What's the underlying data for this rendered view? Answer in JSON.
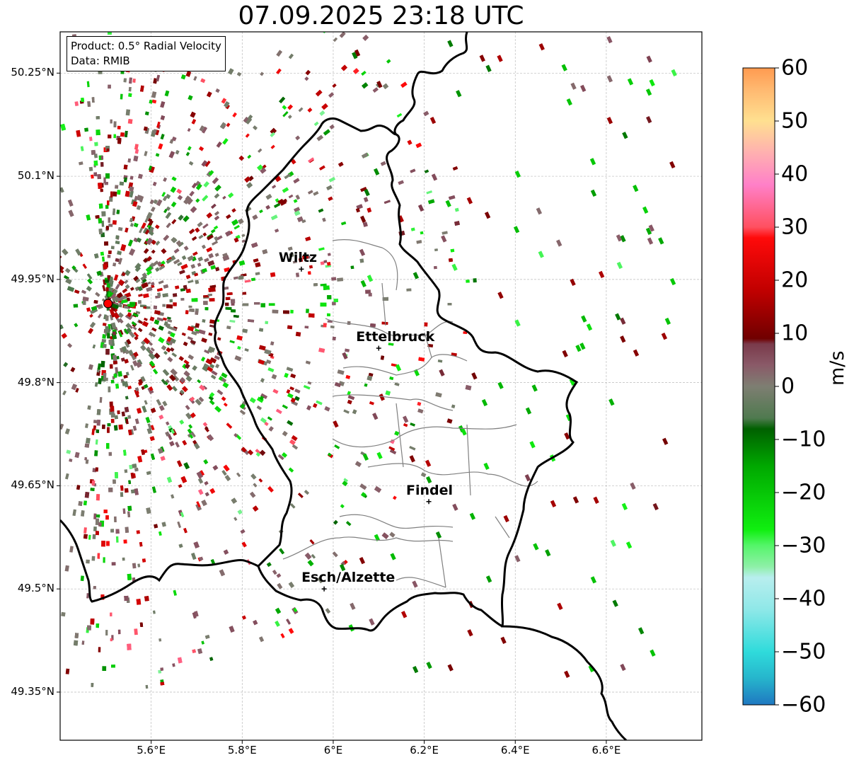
{
  "title": "07.09.2025 23:18 UTC",
  "info_box": {
    "product": "Product: 0.5° Radial Velocity",
    "source": "Data: RMIB"
  },
  "lat_ticks": [
    "50.25°N",
    "50.1°N",
    "49.95°N",
    "49.8°N",
    "49.65°N",
    "49.5°N",
    "49.35°N"
  ],
  "lon_ticks": [
    "5.6°E",
    "5.8°E",
    "6°E",
    "6.2°E",
    "6.4°E",
    "6.6°E"
  ],
  "cities": [
    {
      "name": "Wiltz",
      "lon": 5.93,
      "lat": 49.965
    },
    {
      "name": "Ettelbruck",
      "lon": 6.1,
      "lat": 49.85
    },
    {
      "name": "Findel",
      "lon": 6.21,
      "lat": 49.627
    },
    {
      "name": "Esch/Alzette",
      "lon": 5.98,
      "lat": 49.5
    }
  ],
  "radar_site": {
    "lon": 5.505,
    "lat": 49.915,
    "color": "#ff0000"
  },
  "colorbar": {
    "unit": "m/s",
    "min": -60,
    "max": 60,
    "ticks": [
      "60",
      "50",
      "40",
      "30",
      "20",
      "10",
      "0",
      "−10",
      "−20",
      "−30",
      "−40",
      "−50",
      "−60"
    ],
    "stops": [
      {
        "value": -60,
        "color": "#1f78c1"
      },
      {
        "value": -55,
        "color": "#26b5cc"
      },
      {
        "value": -50,
        "color": "#2fdbdb"
      },
      {
        "value": -42,
        "color": "#8fe8e8"
      },
      {
        "value": -36,
        "color": "#b8eeee"
      },
      {
        "value": -34,
        "color": "#8ff0a8"
      },
      {
        "value": -30,
        "color": "#55f56a"
      },
      {
        "value": -27,
        "color": "#10ef10"
      },
      {
        "value": -15,
        "color": "#00a800"
      },
      {
        "value": -8,
        "color": "#006000"
      },
      {
        "value": -6,
        "color": "#4f7a4f"
      },
      {
        "value": 0,
        "color": "#7e7e72"
      },
      {
        "value": 4,
        "color": "#8a5a68"
      },
      {
        "value": 8,
        "color": "#7a3a4a"
      },
      {
        "value": 9,
        "color": "#700000"
      },
      {
        "value": 18,
        "color": "#c00000"
      },
      {
        "value": 28,
        "color": "#ff0a0a"
      },
      {
        "value": 30,
        "color": "#ff5060"
      },
      {
        "value": 38,
        "color": "#ff80c8"
      },
      {
        "value": 44,
        "color": "#ffb0b0"
      },
      {
        "value": 50,
        "color": "#ffe090"
      },
      {
        "value": 56,
        "color": "#ffb870"
      },
      {
        "value": 60,
        "color": "#ff9a50"
      }
    ]
  }
}
